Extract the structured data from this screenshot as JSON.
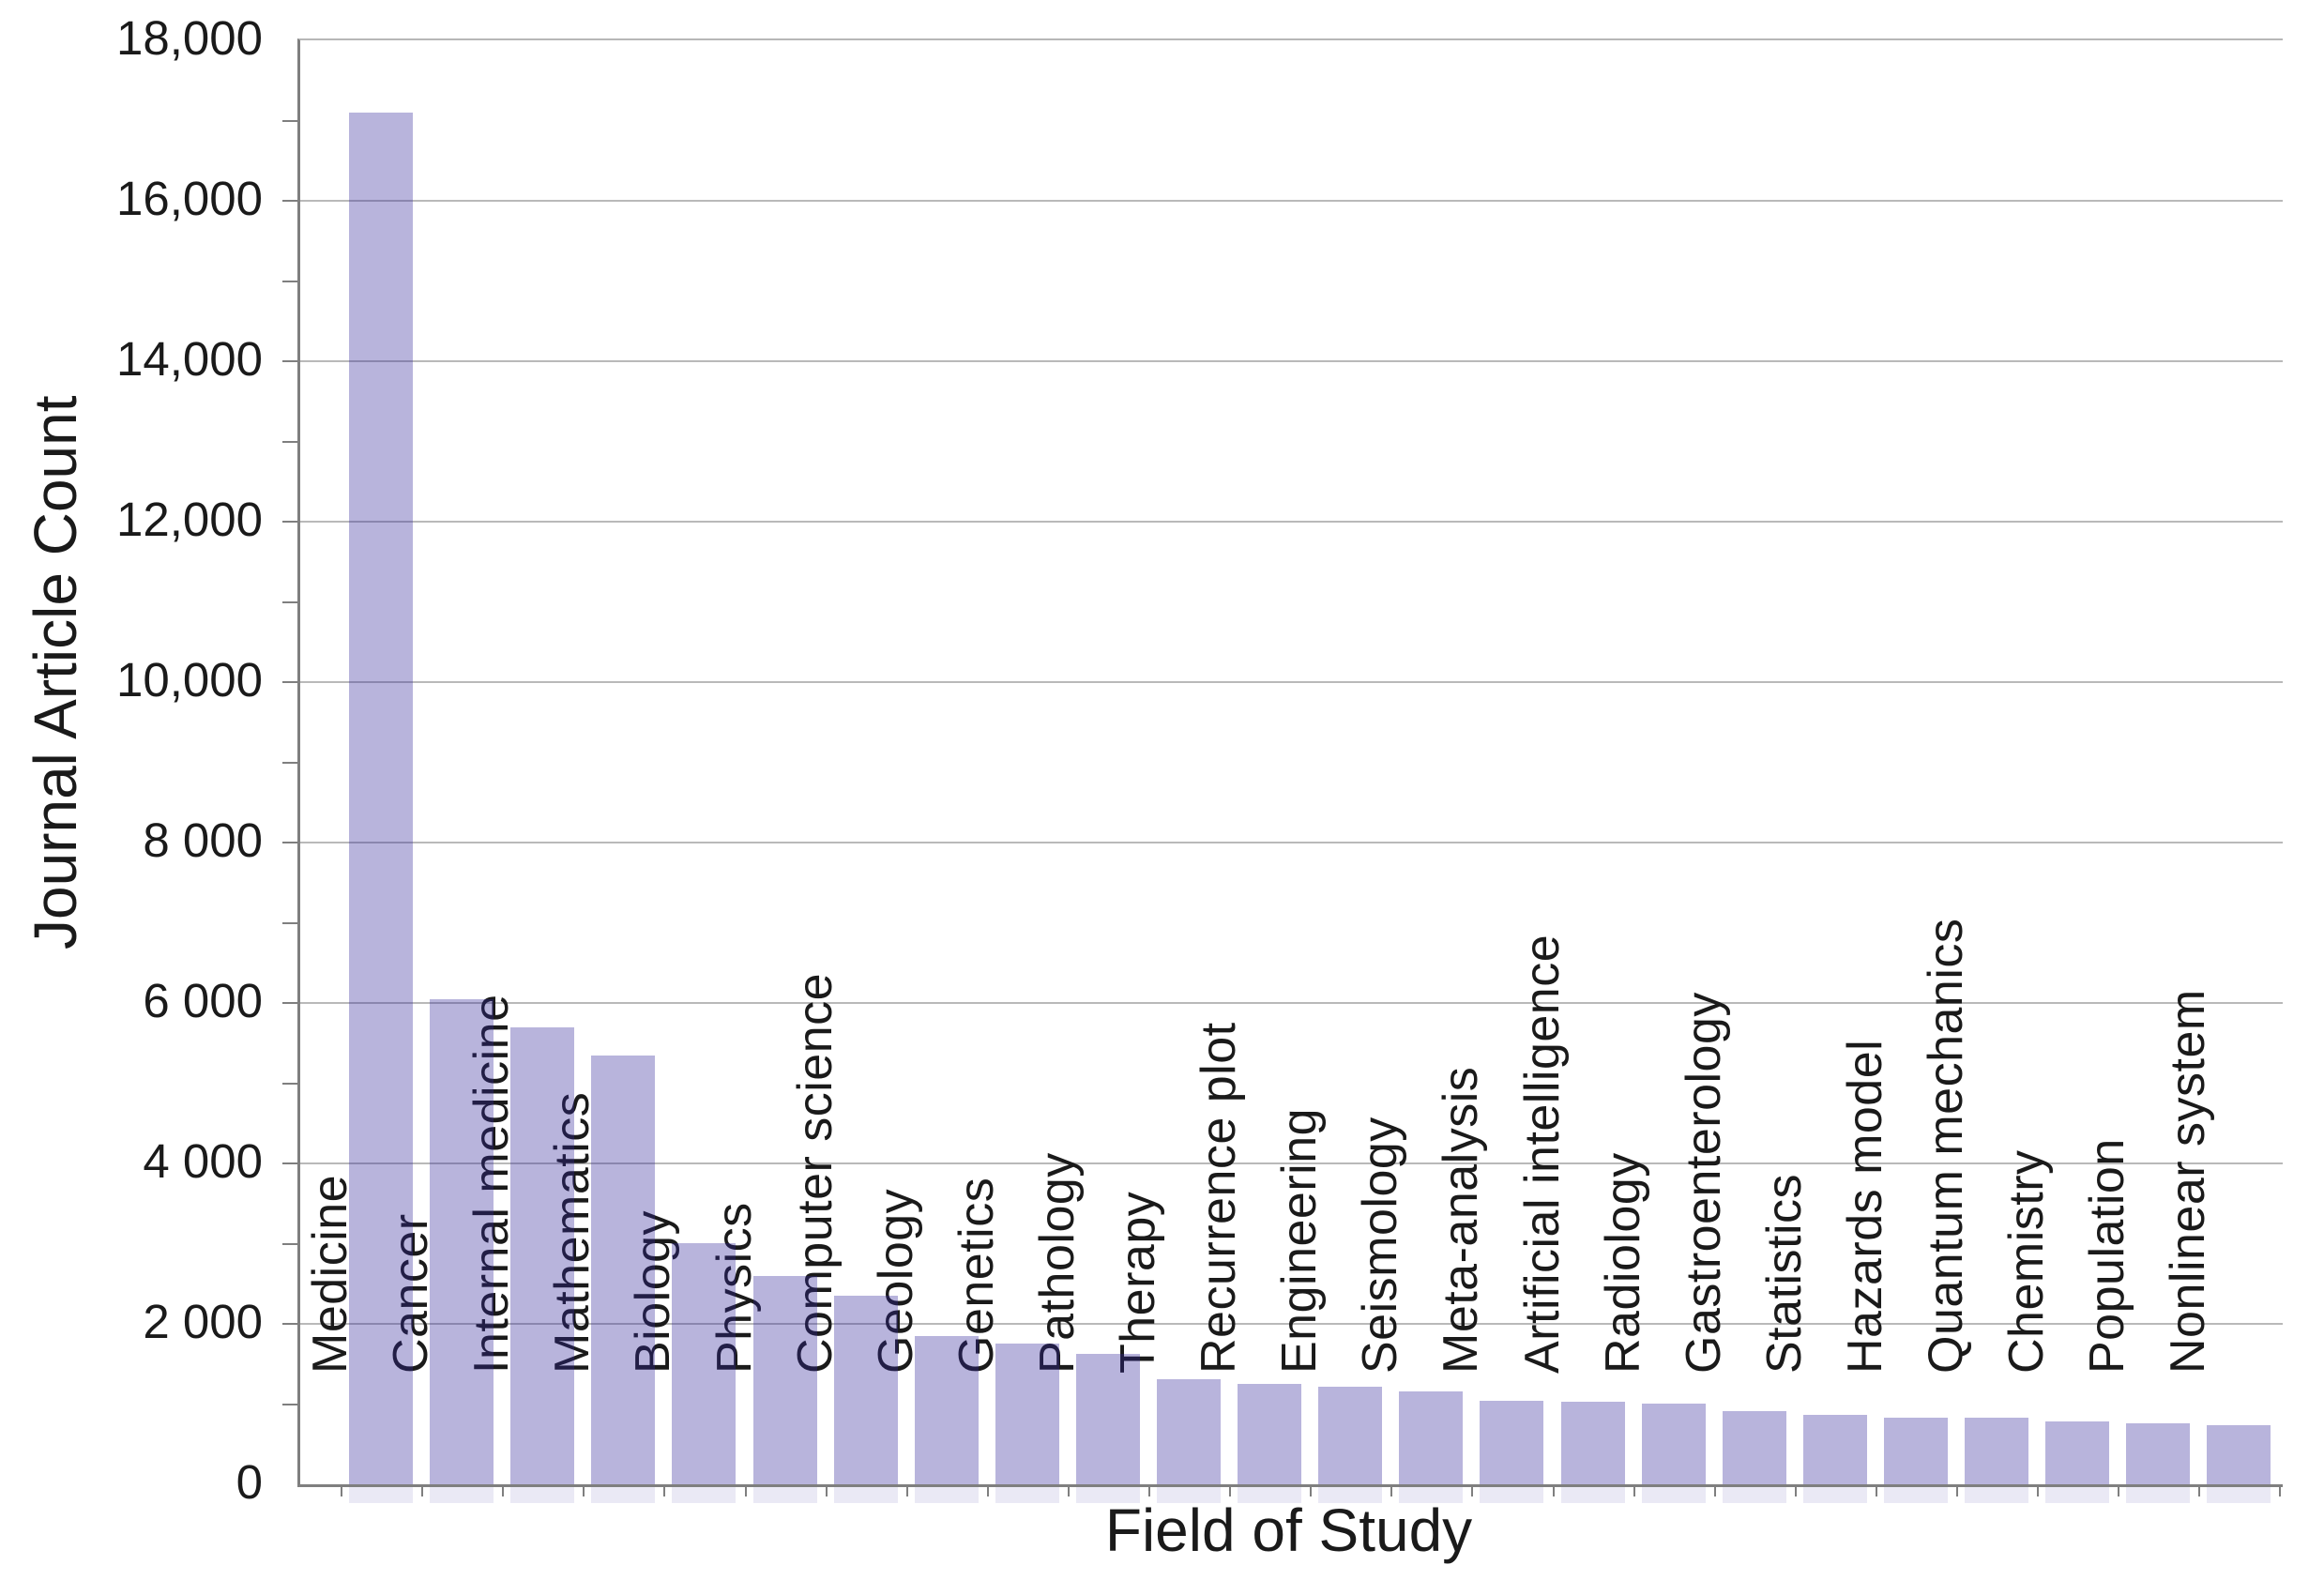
{
  "chart_data": {
    "type": "bar",
    "title": "",
    "xlabel": "Field of Study",
    "ylabel": "Journal Article Count",
    "categories": [
      "Medicine",
      "Cancer",
      "Internal medicine",
      "Mathematics",
      "Biology",
      "Physics",
      "Computer science",
      "Geology",
      "Genetics",
      "Pathology",
      "Therapy",
      "Recurrence plot",
      "Engineering",
      "Seismology",
      "Meta-analysis",
      "Artificial intelligence",
      "Radiology",
      "Gastroenterology",
      "Statistics",
      "Hazards model",
      "Quantum mechanics",
      "Chemistry",
      "Population",
      "Nonlinear system"
    ],
    "values": [
      17100,
      6050,
      5700,
      5350,
      3000,
      2600,
      2350,
      1850,
      1750,
      1620,
      1310,
      1250,
      1220,
      1160,
      1040,
      1030,
      1000,
      910,
      870,
      830,
      830,
      780,
      760,
      740
    ],
    "ylim": [
      0,
      18000
    ],
    "ytick_values": [
      0,
      2000,
      4000,
      6000,
      8000,
      10000,
      12000,
      14000,
      16000,
      18000
    ],
    "ytick_labels": [
      "0",
      "2 000",
      "4 000",
      "6 000",
      "8 000",
      "10,000",
      "12,000",
      "14,000",
      "16,000",
      "18,000"
    ],
    "minor_tick_step": 1000,
    "grid": true,
    "legend_position": "none",
    "layout": "vertical bars, single series, sorted descending",
    "colors": {
      "bar_fill": "rgba(52,41,155,0.35)",
      "bar_fill_on_white": "#b8b4dc",
      "gridline": "#b9b9b9",
      "axis_line": "#7f7f7f",
      "axis_text": "#1a1a1a",
      "category_text_over_bar": "#1e1e5e"
    }
  }
}
